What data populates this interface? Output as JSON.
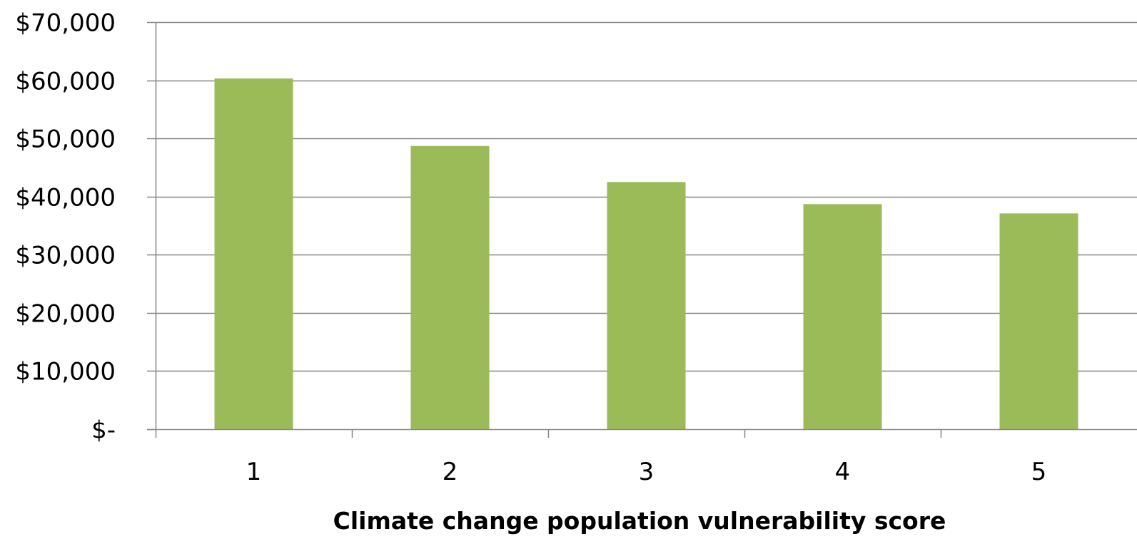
{
  "chart_data": {
    "type": "bar",
    "categories": [
      "1",
      "2",
      "3",
      "4",
      "5"
    ],
    "values": [
      60300,
      48700,
      42500,
      38700,
      37100
    ],
    "title": "",
    "xlabel": "Climate change population vulnerability score",
    "ylabel": "",
    "ylim": [
      0,
      70000
    ],
    "yticks": [
      0,
      10000,
      20000,
      30000,
      40000,
      50000,
      60000,
      70000
    ],
    "ytick_labels": [
      "$-",
      "$10,000",
      "$20,000",
      "$30,000",
      "$40,000",
      "$50,000",
      "$60,000",
      "$70,000"
    ],
    "grid": true,
    "legend": "none",
    "colors": {
      "bar": "#9BBB59",
      "grid": "#868686",
      "axis": "#868686"
    }
  }
}
